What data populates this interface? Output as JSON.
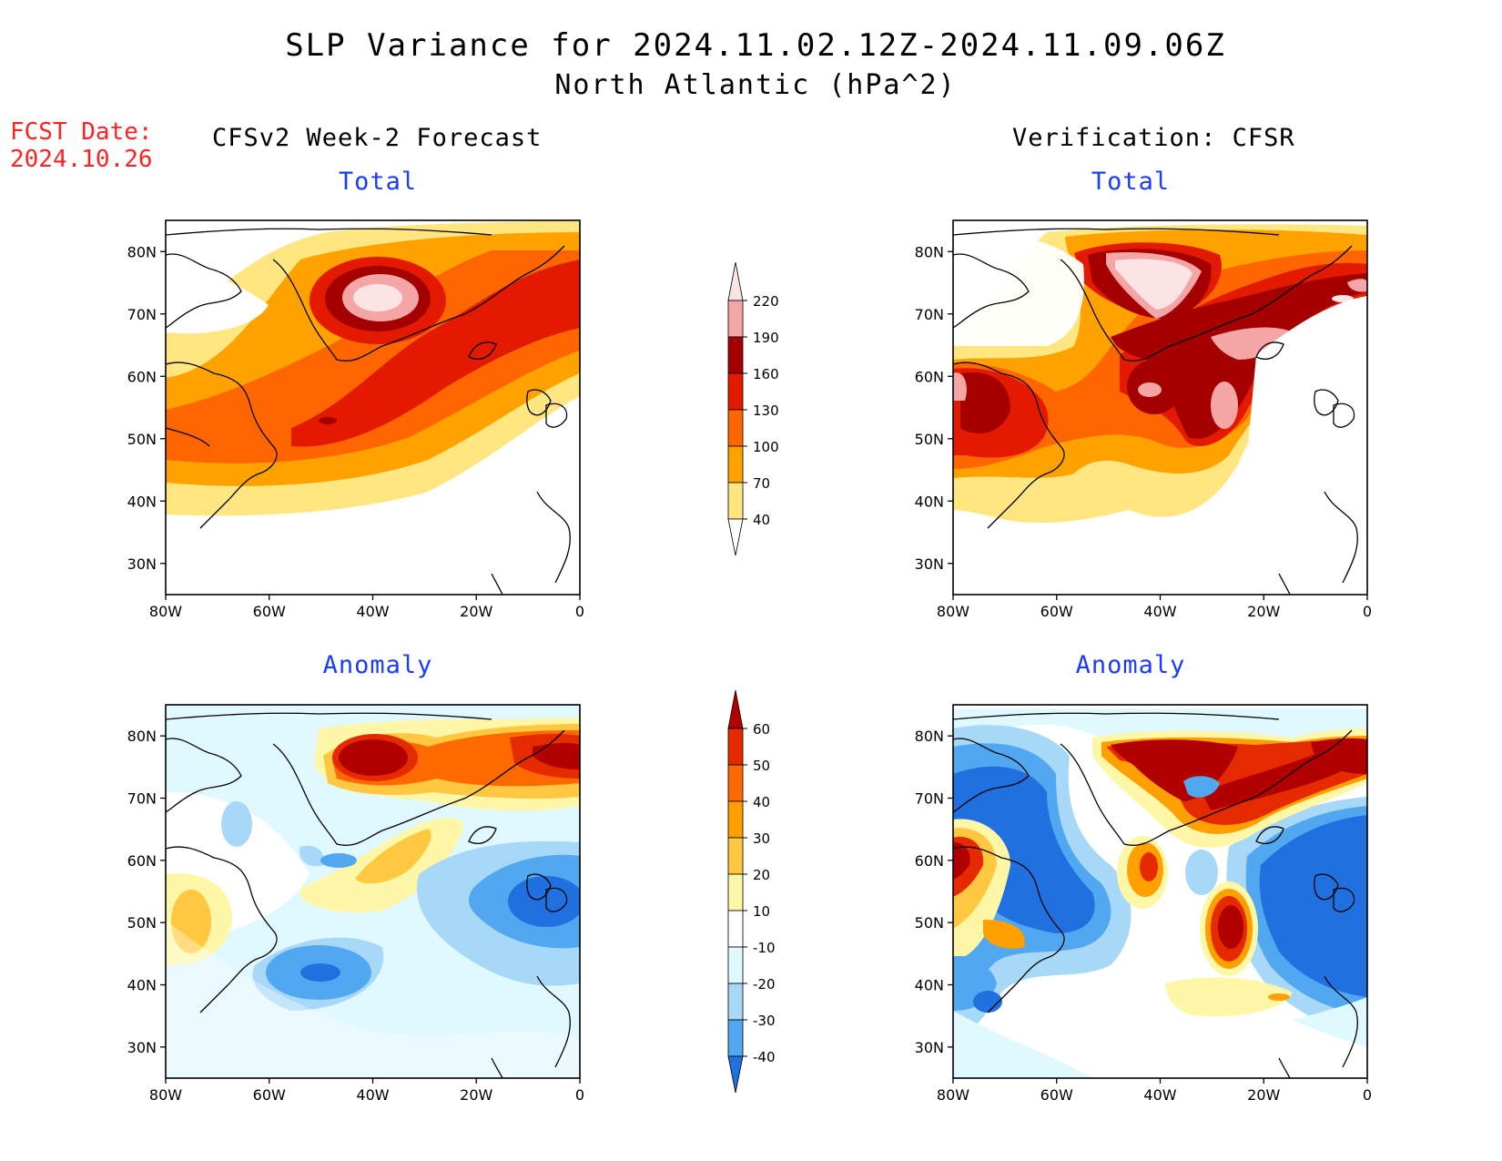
{
  "title": {
    "line1": "SLP Variance for 2024.11.02.12Z-2024.11.09.06Z",
    "line2": "North Atlantic (hPa^2)"
  },
  "fcst_date": {
    "label": "FCST Date:",
    "value": "2024.10.26"
  },
  "columns": {
    "left_heading": "CFSv2 Week-2 Forecast",
    "right_heading": "Verification: CFSR"
  },
  "panels": {
    "total_label": "Total",
    "anomaly_label": "Anomaly"
  },
  "axes": {
    "lat_ticks": [
      "80N",
      "70N",
      "60N",
      "50N",
      "40N",
      "30N"
    ],
    "lon_ticks": [
      "80W",
      "60W",
      "40W",
      "20W",
      "0"
    ]
  },
  "colorbars": {
    "total": {
      "levels": [
        "220",
        "190",
        "160",
        "130",
        "100",
        "70",
        "40"
      ],
      "colors": [
        "#fde4e4",
        "#f4a6a6",
        "#a50000",
        "#e41a00",
        "#ff6600",
        "#ffa200",
        "#ffe680"
      ]
    },
    "anomaly": {
      "levels": [
        "60",
        "50",
        "40",
        "30",
        "20",
        "10",
        "-10",
        "-20",
        "-30",
        "-40"
      ],
      "colors": [
        "#b20000",
        "#e62a00",
        "#ff6a00",
        "#ffa000",
        "#ffc840",
        "#fff7a8",
        "#ffffff",
        "#e0f8ff",
        "#a8d8f8",
        "#52a8f0",
        "#2070e0"
      ]
    }
  }
}
